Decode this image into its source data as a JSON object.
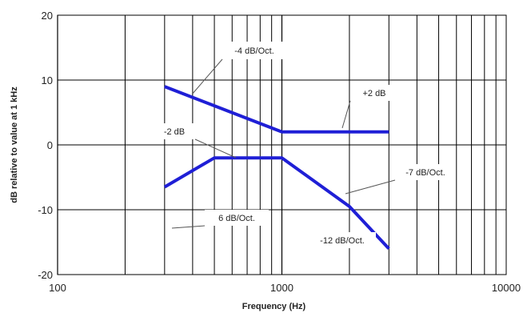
{
  "chart_data": {
    "type": "line",
    "title": "",
    "xlabel": "Frequency (Hz)",
    "ylabel": "dB relative to value at 1 kHz",
    "xscale": "log",
    "xlim": [
      100,
      10000
    ],
    "ylim": [
      -20,
      20
    ],
    "x_ticks": [
      100,
      1000,
      10000
    ],
    "x_tick_labels": [
      "100",
      "1000",
      "10000"
    ],
    "y_ticks": [
      -20,
      -10,
      0,
      10,
      20
    ],
    "y_tick_labels": [
      "-20",
      "-10",
      "0",
      "10",
      "20"
    ],
    "grid": true,
    "legend": "none",
    "series_color": "#1f1fd6",
    "series": [
      {
        "x": [
          300,
          1000,
          3000
        ],
        "y": [
          9,
          2,
          2
        ]
      },
      {
        "x": [
          300,
          500,
          1000,
          2000,
          3000
        ],
        "y": [
          -6.5,
          -2,
          -2,
          -9.5,
          -16
        ]
      }
    ],
    "annotations": [
      {
        "text": "-4 dB/Oct.",
        "x": 400,
        "y": 10
      },
      {
        "text": "+2 dB",
        "x": 1400,
        "y": 2
      },
      {
        "text": "-2 dB",
        "x": 600,
        "y": -2
      },
      {
        "text": "-7 dB/Oct.",
        "x": 1500,
        "y": -7
      },
      {
        "text": "6 dB/Oct.",
        "x": 400,
        "y": -4
      },
      {
        "text": "-12 dB/Oct.",
        "x": 2500,
        "y": -14
      }
    ]
  }
}
